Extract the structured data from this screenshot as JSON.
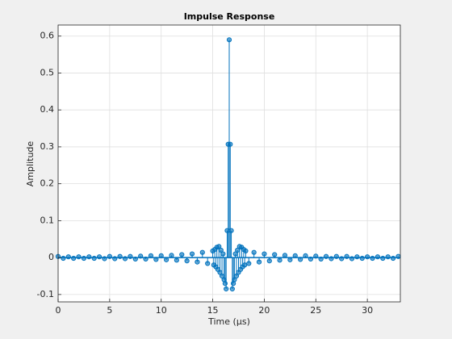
{
  "chart_data": {
    "type": "stem",
    "title": "Impulse Response",
    "xlabel": "Time (μs)",
    "ylabel": "Amplitude",
    "xlim": [
      0,
      33.2
    ],
    "ylim": [
      -0.12,
      0.63
    ],
    "xticks": [
      0,
      5,
      10,
      15,
      20,
      25,
      30
    ],
    "yticks": [
      -0.1,
      0,
      0.1,
      0.2,
      0.3,
      0.4,
      0.5,
      0.6
    ],
    "grid": true,
    "series": [
      {
        "name": "Impulse Response",
        "color": "#0072bd",
        "x": [
          0,
          0.5,
          1,
          1.5,
          2,
          2.5,
          3,
          3.5,
          4,
          4.5,
          5,
          5.5,
          6,
          6.5,
          7,
          7.5,
          8,
          8.5,
          9,
          9.5,
          10,
          10.5,
          11,
          11.5,
          12,
          12.5,
          13,
          13.5,
          14,
          14.5,
          15,
          15.1,
          15.2,
          15.3,
          15.4,
          15.5,
          15.6,
          15.7,
          15.8,
          15.9,
          16,
          16.1,
          16.2,
          16.3,
          16.4,
          16.5,
          16.6,
          16.7,
          16.8,
          16.9,
          17,
          17.1,
          17.2,
          17.3,
          17.4,
          17.5,
          17.6,
          17.7,
          17.8,
          17.9,
          18,
          18.1,
          18.2,
          18.5,
          19,
          19.5,
          20,
          20.5,
          21,
          21.5,
          22,
          22.5,
          23,
          23.5,
          24,
          24.5,
          25,
          25.5,
          26,
          26.5,
          27,
          27.5,
          28,
          28.5,
          29,
          29.5,
          30,
          30.5,
          31,
          31.5,
          32,
          32.5,
          33
        ],
        "values": [
          0.003,
          -0.002,
          0.002,
          -0.002,
          0.002,
          -0.002,
          0.002,
          -0.002,
          0.002,
          -0.003,
          0.003,
          -0.003,
          0.003,
          -0.003,
          0.003,
          -0.004,
          0.004,
          -0.004,
          0.005,
          -0.005,
          0.005,
          -0.006,
          0.006,
          -0.007,
          0.008,
          -0.009,
          0.01,
          -0.012,
          0.014,
          -0.016,
          0.018,
          -0.02,
          0.022,
          -0.025,
          0.028,
          -0.032,
          0.03,
          -0.04,
          0.02,
          -0.05,
          0.01,
          -0.06,
          -0.07,
          -0.085,
          0.073,
          0.307,
          0.59,
          0.307,
          0.073,
          -0.085,
          -0.07,
          -0.06,
          0.01,
          -0.05,
          0.02,
          -0.04,
          0.03,
          -0.032,
          0.028,
          -0.025,
          0.022,
          -0.02,
          0.018,
          -0.016,
          0.014,
          -0.012,
          0.01,
          -0.009,
          0.008,
          -0.007,
          0.006,
          -0.006,
          0.005,
          -0.005,
          0.005,
          -0.004,
          0.004,
          -0.004,
          0.003,
          -0.003,
          0.003,
          -0.003,
          0.003,
          -0.003,
          0.002,
          -0.002,
          0.002,
          -0.002,
          0.002,
          -0.002,
          0.002,
          -0.002,
          0.003
        ]
      }
    ]
  }
}
